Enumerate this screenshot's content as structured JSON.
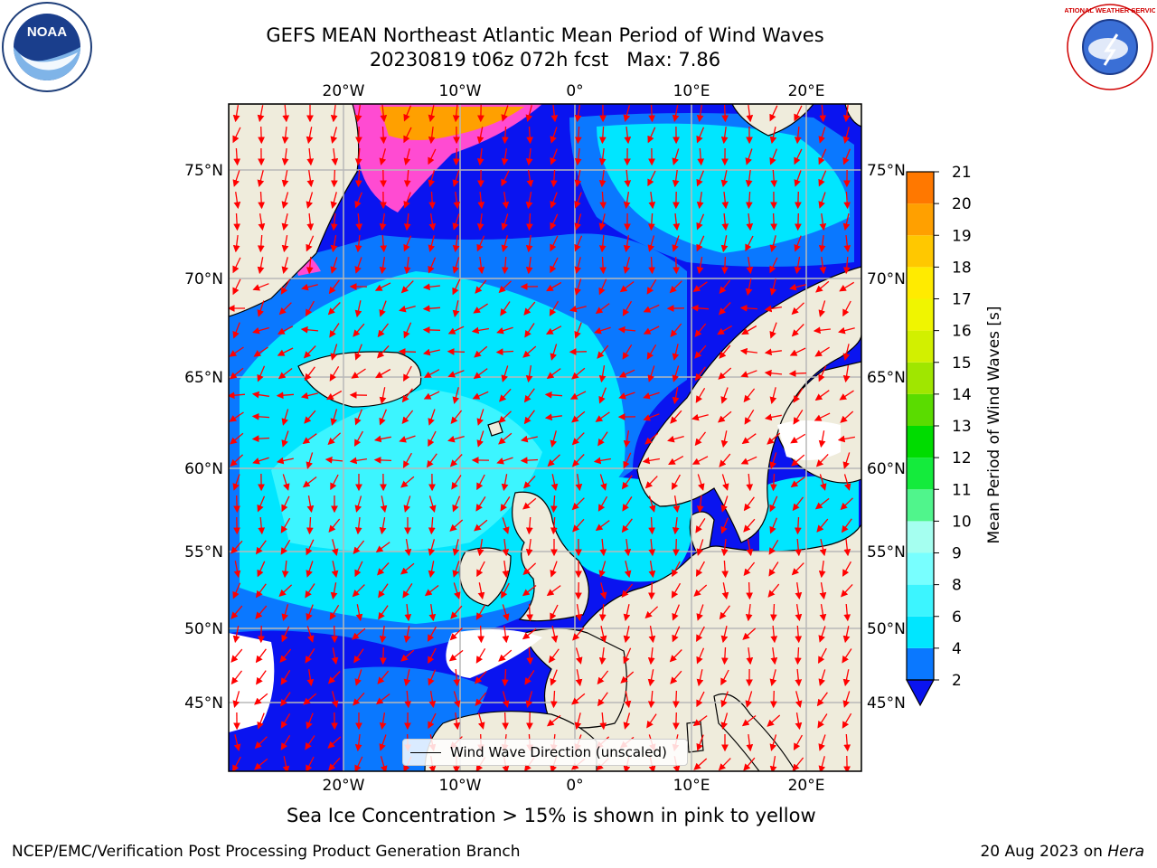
{
  "header": {
    "title_line1": "GEFS MEAN Northeast Atlantic Mean Period of Wind Waves",
    "title_line2": "20230819 t06z 072h fcst   Max: 7.86"
  },
  "map": {
    "lon_labels": [
      "20°W",
      "10°W",
      "0°",
      "10°E",
      "20°E"
    ],
    "lat_labels": [
      "75°N",
      "70°N",
      "65°N",
      "60°N",
      "55°N",
      "50°N",
      "45°N"
    ],
    "legend_label": "Wind Wave Direction (unscaled)",
    "arrow_color": "#ff0000",
    "land_color": "#efecdc"
  },
  "colorbar": {
    "label": "Mean Period of Wind Waves [s]",
    "ticks": [
      "2",
      "4",
      "6",
      "8",
      "9",
      "10",
      "11",
      "12",
      "13",
      "14",
      "15",
      "16",
      "17",
      "18",
      "19",
      "20",
      "21"
    ],
    "colors": [
      "#0a78ff",
      "#00e6ff",
      "#3cf5ff",
      "#78ffff",
      "#a5fff0",
      "#50f58c",
      "#14eb3c",
      "#00dc00",
      "#5adc00",
      "#a0e600",
      "#d2f000",
      "#f0f500",
      "#ffeb00",
      "#ffc800",
      "#ffa000",
      "#ff7800",
      "#ff4b00",
      "#ff1e00"
    ],
    "extend_color": "#0a14f0"
  },
  "caption": "Sea Ice Concentration > 15% is shown in pink to yellow",
  "footer": {
    "left": "NCEP/EMC/Verification Post Processing Product Generation Branch",
    "date": "20 Aug 2023 on",
    "host": "Hera"
  },
  "logos": {
    "noaa_text": "NOAA",
    "nws_text": "NATIONAL WEATHER SERVICE"
  }
}
